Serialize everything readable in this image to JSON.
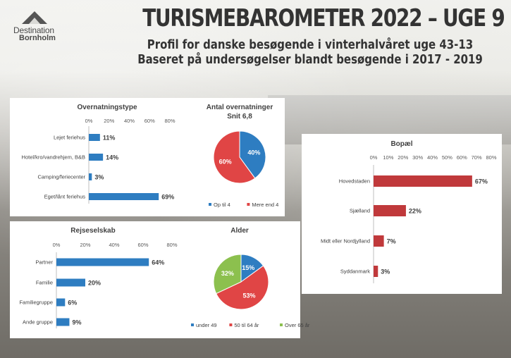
{
  "header": {
    "logo_line1": "Destination",
    "logo_line2": "Bornholm",
    "title": "TURISMEBAROMETER 2022 – UGE 9",
    "subtitle1": "Profil for danske besøgende i vinterhalvåret uge 43-13",
    "subtitle2": "Baseret på undersøgelser blandt besøgende i 2017 - 2019"
  },
  "colors": {
    "blue": "#2e7dc1",
    "red": "#e04545",
    "green": "#8cc04e",
    "darkred": "#c0393b"
  },
  "chart_data": [
    {
      "id": "overnatningstype",
      "type": "bar",
      "orientation": "horizontal",
      "title": "Overnatningstype",
      "categories": [
        "Lejet feriehus",
        "Hotel/kro/vandrehjem, B&B",
        "Camping/feriecenter",
        "Eget/lånt feriehus"
      ],
      "values": [
        11,
        14,
        3,
        69
      ],
      "value_labels": [
        "11%",
        "14%",
        "3%",
        "69%"
      ],
      "ticks": [
        "0%",
        "20%",
        "40%",
        "60%",
        "80%"
      ],
      "xlim": [
        0,
        80
      ],
      "color": "#2e7dc1"
    },
    {
      "id": "antal-overnatninger",
      "type": "pie",
      "title": "Antal overnatninger",
      "subtitle": "Snit 6,8",
      "labels": [
        "Op til 4",
        "Mere end 4"
      ],
      "values": [
        40,
        60
      ],
      "value_labels": [
        "40%",
        "60%"
      ],
      "colors": [
        "#2e7dc1",
        "#e04545"
      ]
    },
    {
      "id": "rejseselskab",
      "type": "bar",
      "orientation": "horizontal",
      "title": "Rejseselskab",
      "categories": [
        "Partner",
        "Familie",
        "Familiegruppe",
        "Ande gruppe"
      ],
      "values": [
        64,
        20,
        6,
        9
      ],
      "value_labels": [
        "64%",
        "20%",
        "6%",
        "9%"
      ],
      "ticks": [
        "0%",
        "20%",
        "40%",
        "60%",
        "80%"
      ],
      "xlim": [
        0,
        80
      ],
      "color": "#2e7dc1"
    },
    {
      "id": "alder",
      "type": "pie",
      "title": "Alder",
      "labels": [
        "under 49",
        "50 til 64 år",
        "Over 65 år"
      ],
      "values": [
        15,
        53,
        32
      ],
      "value_labels": [
        "15%",
        "53%",
        "32%"
      ],
      "colors": [
        "#2e7dc1",
        "#e04545",
        "#8cc04e"
      ]
    },
    {
      "id": "bopael",
      "type": "bar",
      "orientation": "horizontal",
      "title": "Bopæl",
      "categories": [
        "Hovedstaden",
        "Sjælland",
        "Midt eller Nordjylland",
        "Syddanmark"
      ],
      "values": [
        67,
        22,
        7,
        3
      ],
      "value_labels": [
        "67%",
        "22%",
        "7%",
        "3%"
      ],
      "ticks": [
        "0%",
        "10%",
        "20%",
        "30%",
        "40%",
        "50%",
        "60%",
        "70%",
        "80%"
      ],
      "xlim": [
        0,
        80
      ],
      "color": "#c0393b"
    }
  ]
}
